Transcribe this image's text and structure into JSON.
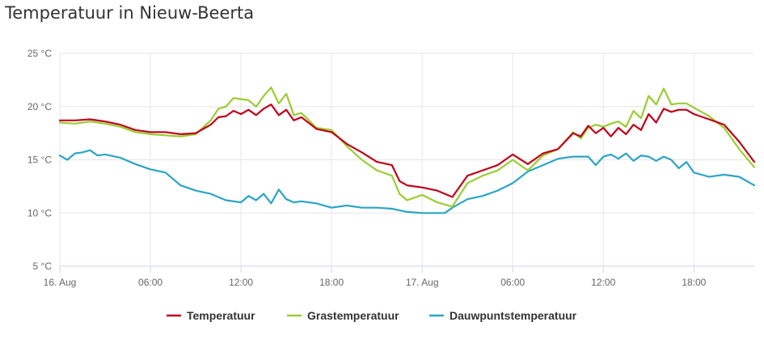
{
  "chart_data": {
    "type": "line",
    "title": "Temperatuur in Nieuw-Beerta",
    "xlabel": "",
    "ylabel": "",
    "x_unit": "hours since 16 Aug 00:00",
    "xlim": [
      0,
      46
    ],
    "ylim": [
      5,
      25
    ],
    "grid": true,
    "legend_position": "bottom",
    "y_ticks": [
      {
        "value": 5,
        "label": "5 °C"
      },
      {
        "value": 10,
        "label": "10 °C"
      },
      {
        "value": 15,
        "label": "15 °C"
      },
      {
        "value": 20,
        "label": "20 °C"
      },
      {
        "value": 25,
        "label": "25 °C"
      }
    ],
    "x_ticks": [
      {
        "value": 0,
        "label": "16. Aug"
      },
      {
        "value": 6,
        "label": "06:00"
      },
      {
        "value": 12,
        "label": "12:00"
      },
      {
        "value": 18,
        "label": "18:00"
      },
      {
        "value": 24,
        "label": "17. Aug"
      },
      {
        "value": 30,
        "label": "06:00"
      },
      {
        "value": 36,
        "label": "12:00"
      },
      {
        "value": 42,
        "label": "18:00"
      }
    ],
    "series": [
      {
        "name": "Temperatuur",
        "color": "#c0001a",
        "x": [
          0,
          1,
          2,
          3,
          4,
          5,
          6,
          7,
          8,
          9,
          10,
          10.5,
          11,
          11.5,
          12,
          12.5,
          13,
          13.5,
          14,
          14.5,
          15,
          15.5,
          16,
          17,
          18,
          19,
          20,
          21,
          22,
          22.5,
          23,
          24,
          25,
          26,
          27,
          28,
          29,
          30,
          31,
          32,
          33,
          34,
          34.5,
          35,
          35.5,
          36,
          36.5,
          37,
          37.5,
          38,
          38.5,
          39,
          39.5,
          40,
          40.5,
          41,
          41.5,
          42,
          43,
          44,
          45,
          46
        ],
        "y": [
          18.7,
          18.7,
          18.8,
          18.6,
          18.3,
          17.8,
          17.6,
          17.6,
          17.4,
          17.5,
          18.3,
          19.0,
          19.1,
          19.6,
          19.3,
          19.7,
          19.2,
          19.8,
          20.2,
          19.2,
          19.7,
          18.7,
          19.0,
          17.9,
          17.6,
          16.5,
          15.7,
          14.8,
          14.5,
          13.0,
          12.6,
          12.4,
          12.1,
          11.5,
          13.5,
          14.0,
          14.5,
          15.5,
          14.6,
          15.6,
          16.0,
          17.5,
          17.2,
          18.2,
          17.5,
          18.0,
          17.2,
          18.0,
          17.4,
          18.3,
          17.8,
          19.3,
          18.5,
          19.8,
          19.5,
          19.7,
          19.7,
          19.3,
          18.8,
          18.3,
          16.7,
          14.8
        ]
      },
      {
        "name": "Grastemperatuur",
        "color": "#9acd32",
        "x": [
          0,
          1,
          2,
          3,
          4,
          5,
          6,
          7,
          8,
          9,
          10,
          10.5,
          11,
          11.5,
          12,
          12.5,
          13,
          13.5,
          14,
          14.5,
          15,
          15.5,
          16,
          17,
          18,
          19,
          20,
          21,
          22,
          22.5,
          23,
          24,
          25,
          26,
          27,
          28,
          29,
          30,
          31,
          32,
          33,
          34,
          34.5,
          35,
          35.5,
          36,
          36.5,
          37,
          37.5,
          38,
          38.5,
          39,
          39.5,
          40,
          40.5,
          41,
          41.5,
          42,
          43,
          44,
          45,
          46
        ],
        "y": [
          18.5,
          18.4,
          18.6,
          18.4,
          18.1,
          17.6,
          17.4,
          17.3,
          17.2,
          17.4,
          18.7,
          19.8,
          20.0,
          20.8,
          20.7,
          20.6,
          20.0,
          21.0,
          21.8,
          20.3,
          21.2,
          19.2,
          19.4,
          18.0,
          17.8,
          16.3,
          15.0,
          14.0,
          13.5,
          11.8,
          11.2,
          11.7,
          11.0,
          10.6,
          12.8,
          13.5,
          14.0,
          15.0,
          14.0,
          15.4,
          16.0,
          17.6,
          17.0,
          18.0,
          18.3,
          18.1,
          18.4,
          18.6,
          18.1,
          19.6,
          18.9,
          21.0,
          20.2,
          21.7,
          20.2,
          20.3,
          20.3,
          19.9,
          19.1,
          18.0,
          16.0,
          14.3
        ]
      },
      {
        "name": "Dauwpuntstemperatuur",
        "color": "#2ba5c6",
        "x": [
          0,
          0.5,
          1,
          1.5,
          2,
          2.5,
          3,
          4,
          5,
          6,
          7,
          8,
          9,
          10,
          11,
          12,
          12.5,
          13,
          13.5,
          14,
          14.5,
          15,
          15.5,
          16,
          17,
          18,
          19,
          20,
          21,
          22,
          23,
          24,
          25,
          25.5,
          26,
          27,
          28,
          29,
          30,
          31,
          32,
          33,
          34,
          35,
          35.5,
          36,
          36.5,
          37,
          37.5,
          38,
          38.5,
          39,
          39.5,
          40,
          40.5,
          41,
          41.5,
          42,
          43,
          44,
          45,
          46
        ],
        "y": [
          15.4,
          15.0,
          15.6,
          15.7,
          15.9,
          15.4,
          15.5,
          15.2,
          14.6,
          14.1,
          13.8,
          12.6,
          12.1,
          11.8,
          11.2,
          11.0,
          11.6,
          11.2,
          11.8,
          10.9,
          12.2,
          11.3,
          11.0,
          11.1,
          10.9,
          10.5,
          10.7,
          10.5,
          10.5,
          10.4,
          10.1,
          10.0,
          10.0,
          10.0,
          10.5,
          11.3,
          11.6,
          12.1,
          12.8,
          13.9,
          14.5,
          15.1,
          15.3,
          15.3,
          14.5,
          15.3,
          15.5,
          15.1,
          15.6,
          14.9,
          15.4,
          15.3,
          14.9,
          15.3,
          15.0,
          14.2,
          14.8,
          13.8,
          13.4,
          13.6,
          13.4,
          12.6
        ]
      }
    ]
  }
}
